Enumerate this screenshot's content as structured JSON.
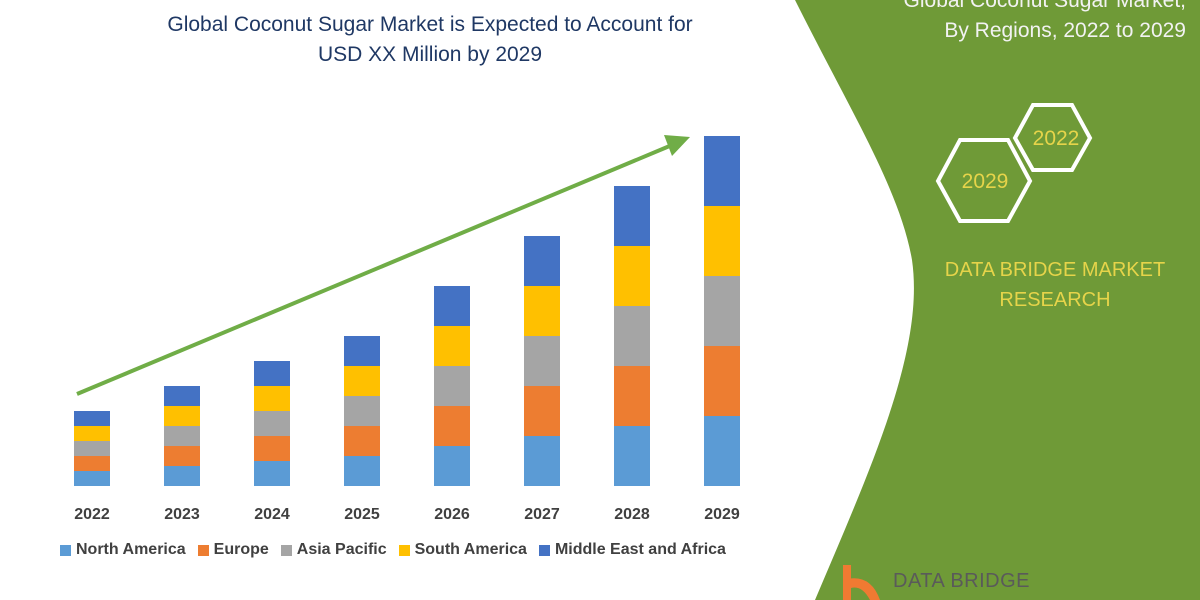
{
  "header": {
    "title_line1": "Global Coconut Sugar Market is Expected to Account for",
    "title_line2": "USD XX Million by 2029"
  },
  "side_panel": {
    "title_line1": "Global Coconut Sugar Market,",
    "title_line2": "By Regions, 2022 to 2029",
    "hex_a": "2022",
    "hex_b": "2029",
    "brand_line1": "DATA BRIDGE MARKET",
    "brand_line2": "RESEARCH",
    "logo_text": "DATA BRIDGE",
    "panel_color": "#6f9a37",
    "brand_color": "#e6d44a"
  },
  "chart_data": {
    "type": "bar",
    "stacked": true,
    "title": "Global Coconut Sugar Market is Expected to Account for USD XX Million by 2029",
    "categories": [
      "2022",
      "2023",
      "2024",
      "2025",
      "2026",
      "2027",
      "2028",
      "2029"
    ],
    "series": [
      {
        "name": "North America",
        "color": "#5b9bd5",
        "values": [
          15,
          20,
          25,
          30,
          40,
          50,
          60,
          70
        ]
      },
      {
        "name": "Europe",
        "color": "#ed7d31",
        "values": [
          15,
          20,
          25,
          30,
          40,
          50,
          60,
          70
        ]
      },
      {
        "name": "Asia Pacific",
        "color": "#a5a5a5",
        "values": [
          15,
          20,
          25,
          30,
          40,
          50,
          60,
          70
        ]
      },
      {
        "name": "South America",
        "color": "#ffc000",
        "values": [
          15,
          20,
          25,
          30,
          40,
          50,
          60,
          70
        ]
      },
      {
        "name": "Middle East and Africa",
        "color": "#4472c4",
        "values": [
          15,
          20,
          25,
          30,
          40,
          50,
          60,
          70
        ]
      }
    ],
    "y_axis_shown": false,
    "grid": false,
    "legend_position": "bottom",
    "trend_arrow_color": "#70ad47"
  }
}
